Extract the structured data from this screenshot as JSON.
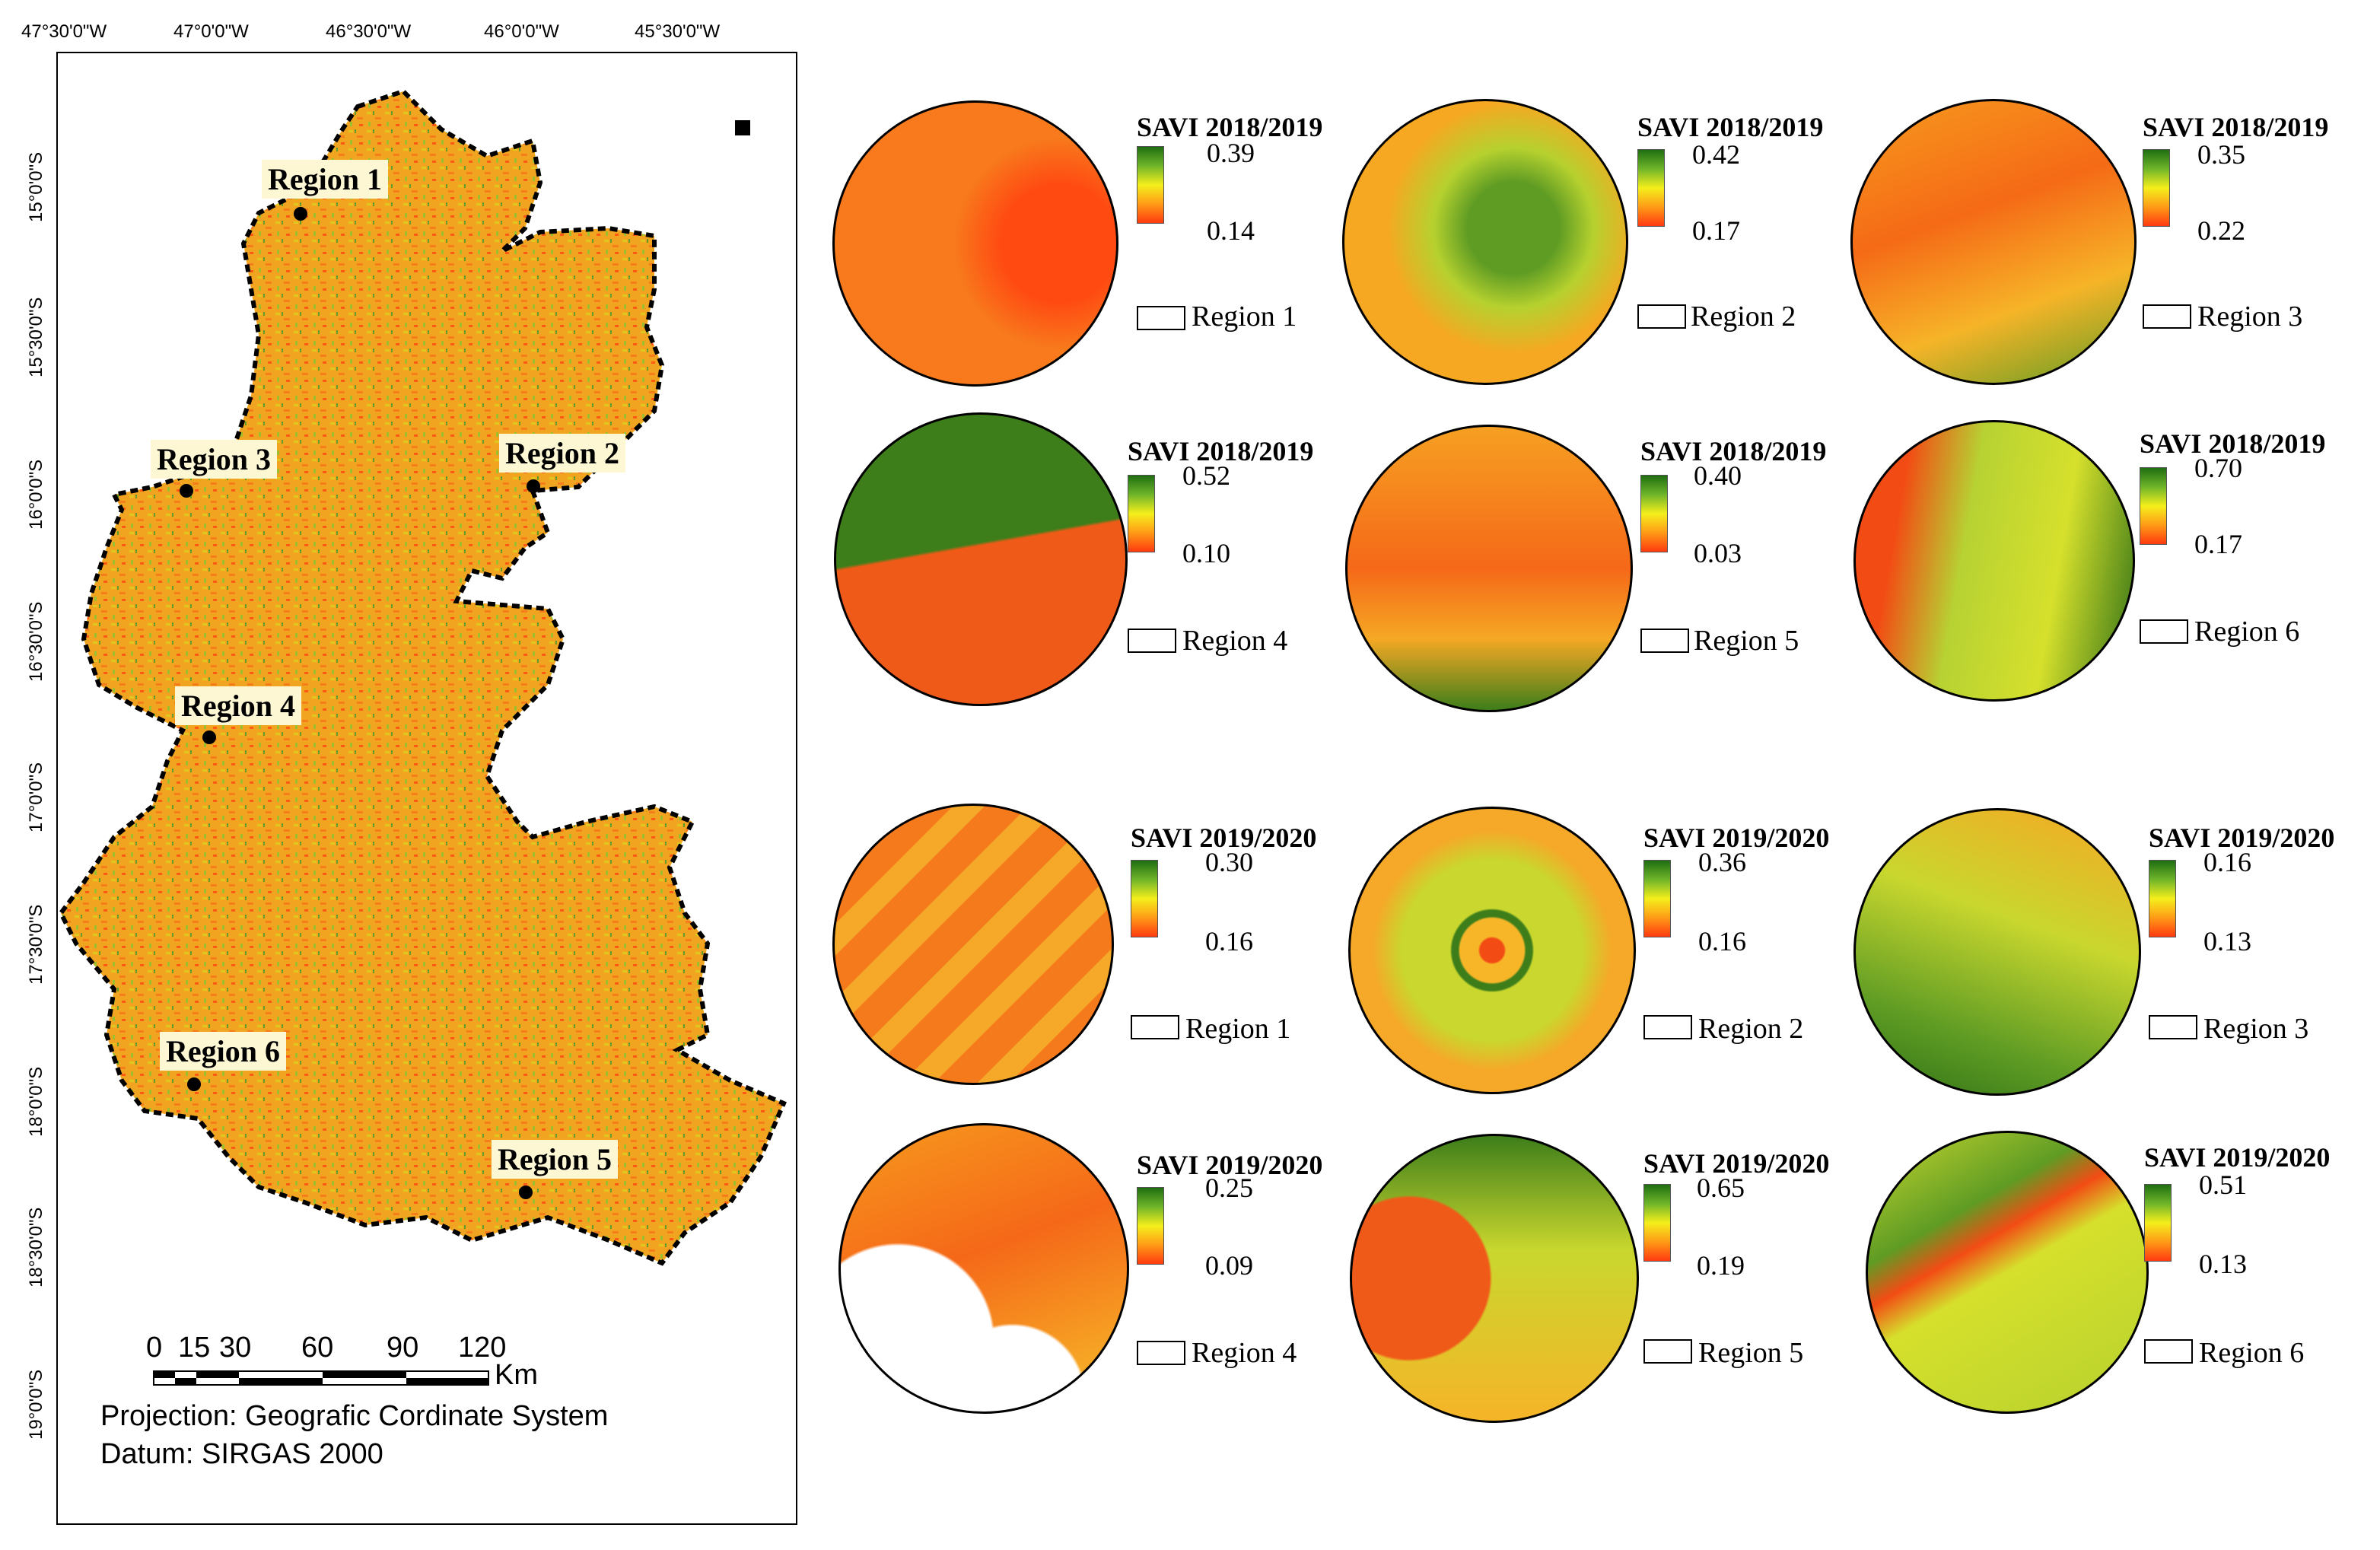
{
  "map": {
    "lon_ticks": [
      "47°30'0\"W",
      "47°0'0\"W",
      "46°30'0\"W",
      "46°0'0\"W",
      "45°30'0\"W"
    ],
    "lat_ticks": [
      "15°0'0\"S",
      "15°30'0\"S",
      "16°0'0\"S",
      "16°30'0\"S",
      "17°0'0\"S",
      "17°30'0\"S",
      "18°0'0\"S",
      "18°30'0\"S",
      "19°0'0\"S"
    ],
    "regions": [
      {
        "label": "Region 1"
      },
      {
        "label": "Region 2"
      },
      {
        "label": "Region 3"
      },
      {
        "label": "Region 4"
      },
      {
        "label": "Region 5"
      },
      {
        "label": "Region 6"
      }
    ],
    "scale": {
      "ticks": [
        "0",
        "15",
        "30",
        "60",
        "90",
        "120"
      ],
      "unit": "Km"
    },
    "projection": "Projection: Geografic Cordinate System",
    "datum": "Datum: SIRGAS 2000",
    "colors": {
      "high": "#1f6e12",
      "mid": "#f4ef1c",
      "low": "#ff3a10",
      "outline": "#000000"
    }
  },
  "insets": [
    {
      "title": "SAVI 2018/2019",
      "max": "0.39",
      "min": "0.14",
      "region": "Region 1"
    },
    {
      "title": "SAVI 2018/2019",
      "max": "0.42",
      "min": "0.17",
      "region": "Region 2"
    },
    {
      "title": "SAVI 2018/2019",
      "max": "0.35",
      "min": "0.22",
      "region": "Region 3"
    },
    {
      "title": "SAVI 2018/2019",
      "max": "0.52",
      "min": "0.10",
      "region": "Region 4"
    },
    {
      "title": "SAVI 2018/2019",
      "max": "0.40",
      "min": "0.03",
      "region": "Region 5"
    },
    {
      "title": "SAVI 2018/2019",
      "max": "0.70",
      "min": "0.17",
      "region": "Region 6"
    },
    {
      "title": "SAVI 2019/2020",
      "max": "0.30",
      "min": "0.16",
      "region": "Region 1"
    },
    {
      "title": "SAVI 2019/2020",
      "max": "0.36",
      "min": "0.16",
      "region": "Region 2"
    },
    {
      "title": "SAVI 2019/2020",
      "max": "0.16",
      "min": "0.13",
      "region": "Region 3"
    },
    {
      "title": "SAVI 2019/2020",
      "max": "0.25",
      "min": "0.09",
      "region": "Region 4"
    },
    {
      "title": "SAVI 2019/2020",
      "max": "0.65",
      "min": "0.19",
      "region": "Region 5"
    },
    {
      "title": "SAVI 2019/2020",
      "max": "0.51",
      "min": "0.13",
      "region": "Region 6"
    }
  ]
}
